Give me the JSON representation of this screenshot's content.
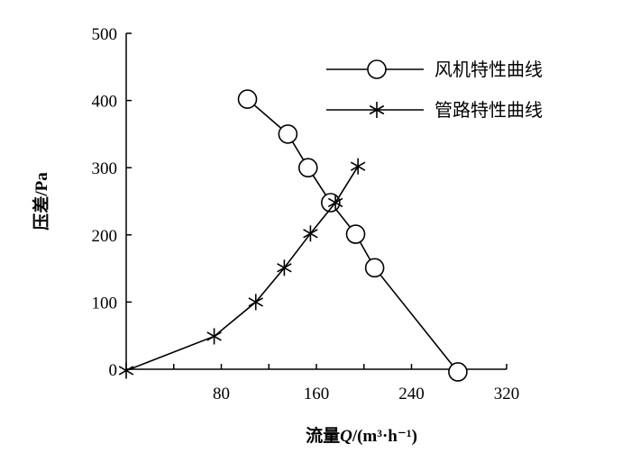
{
  "chart_data": {
    "type": "line",
    "xlabel_prefix": "流量",
    "xlabel_var": "Q",
    "xlabel_unit": "/(m³·h⁻¹)",
    "ylabel": "压差/Pa",
    "xlim": [
      0,
      320
    ],
    "ylim": [
      0,
      500
    ],
    "x_ticks": [
      80,
      160,
      240,
      320
    ],
    "y_ticks": [
      0,
      100,
      200,
      300,
      400,
      500
    ],
    "legend_position": "top-right",
    "series": [
      {
        "name": "风机特性曲线",
        "marker": "circle",
        "x": [
          102,
          136,
          153,
          172,
          193,
          209,
          279
        ],
        "y": [
          402,
          350,
          300,
          248,
          201,
          151,
          -4
        ]
      },
      {
        "name": "管路特性曲线",
        "marker": "asterisk",
        "x": [
          0,
          74,
          109,
          133,
          155,
          176,
          195
        ],
        "y": [
          -2,
          49,
          100,
          151,
          202,
          248,
          302
        ]
      }
    ]
  }
}
